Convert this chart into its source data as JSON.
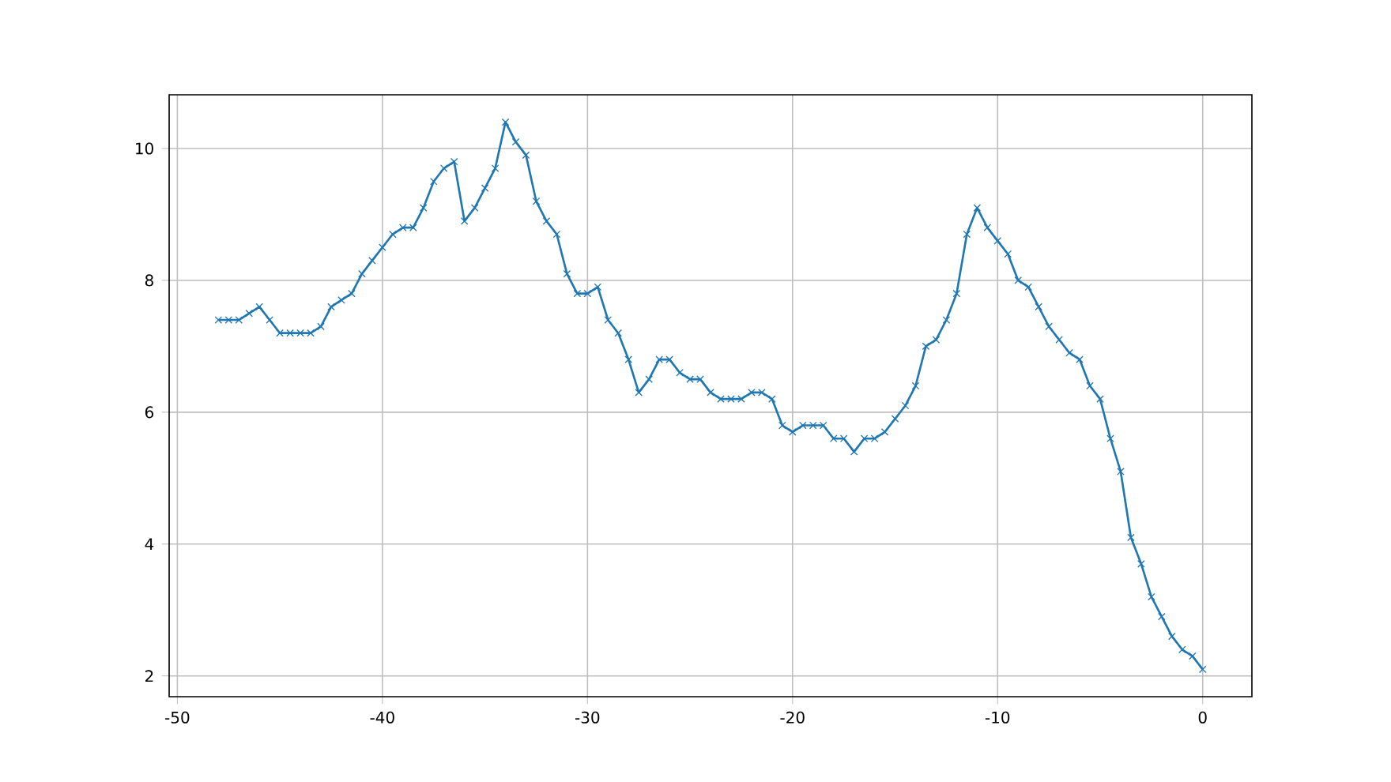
{
  "chart_data": {
    "type": "line",
    "x": [
      -48,
      -47.5,
      -47,
      -46.5,
      -46,
      -45.5,
      -45,
      -44.5,
      -44,
      -43.5,
      -43,
      -42.5,
      -42,
      -41.5,
      -41,
      -40.5,
      -40,
      -39.5,
      -39,
      -38.5,
      -38,
      -37.5,
      -37,
      -36.5,
      -36,
      -35.5,
      -35,
      -34.5,
      -34,
      -33.5,
      -33,
      -32.5,
      -32,
      -31.5,
      -31,
      -30.5,
      -30,
      -29.5,
      -29,
      -28.5,
      -28,
      -27.5,
      -27,
      -26.5,
      -26,
      -25.5,
      -25,
      -24.5,
      -24,
      -23.5,
      -23,
      -22.5,
      -22,
      -21.5,
      -21,
      -20.5,
      -20,
      -19.5,
      -19,
      -18.5,
      -18,
      -17.5,
      -17,
      -16.5,
      -16,
      -15.5,
      -15,
      -14.5,
      -14,
      -13.5,
      -13,
      -12.5,
      -12,
      -11.5,
      -11,
      -10.5,
      -10,
      -9.5,
      -9,
      -8.5,
      -8,
      -7.5,
      -7,
      -6.5,
      -6,
      -5.5,
      -5,
      -4.5,
      -4,
      -3.5,
      -3,
      -2.5,
      -2,
      -1.5,
      -1,
      -0.5,
      0
    ],
    "series": [
      {
        "color": "#1f77b4",
        "values": [
          7.4,
          7.4,
          7.4,
          7.5,
          7.6,
          7.4,
          7.2,
          7.2,
          7.2,
          7.2,
          7.3,
          7.6,
          7.7,
          7.8,
          8.1,
          8.3,
          8.5,
          8.7,
          8.8,
          8.8,
          9.1,
          9.5,
          9.7,
          9.8,
          8.9,
          9.1,
          9.4,
          9.7,
          10.4,
          10.1,
          9.9,
          9.2,
          8.9,
          8.7,
          8.1,
          7.8,
          7.8,
          7.9,
          7.4,
          7.2,
          6.8,
          6.3,
          6.5,
          6.8,
          6.8,
          6.6,
          6.5,
          6.5,
          6.3,
          6.2,
          6.2,
          6.2,
          6.3,
          6.3,
          6.2,
          5.8,
          5.7,
          5.8,
          5.8,
          5.8,
          5.6,
          5.6,
          5.4,
          5.6,
          5.6,
          5.7,
          5.9,
          6.1,
          6.4,
          7.0,
          7.1,
          7.4,
          7.8,
          8.7,
          9.1,
          8.8,
          8.6,
          8.4,
          8.0,
          7.9,
          7.6,
          7.3,
          7.1,
          6.9,
          6.8,
          6.4,
          6.2,
          5.6,
          5.1,
          4.1,
          3.7,
          3.2,
          2.9,
          2.6,
          2.4,
          2.3,
          2.1
        ]
      }
    ],
    "xlim": [
      -50.4,
      2.4
    ],
    "ylim": [
      1.685,
      10.815
    ],
    "xticks": [
      -50,
      -40,
      -30,
      -20,
      -10,
      0
    ],
    "yticks": [
      2,
      4,
      6,
      8,
      10
    ],
    "grid": true,
    "marker": "cross",
    "line_style": "solid"
  }
}
